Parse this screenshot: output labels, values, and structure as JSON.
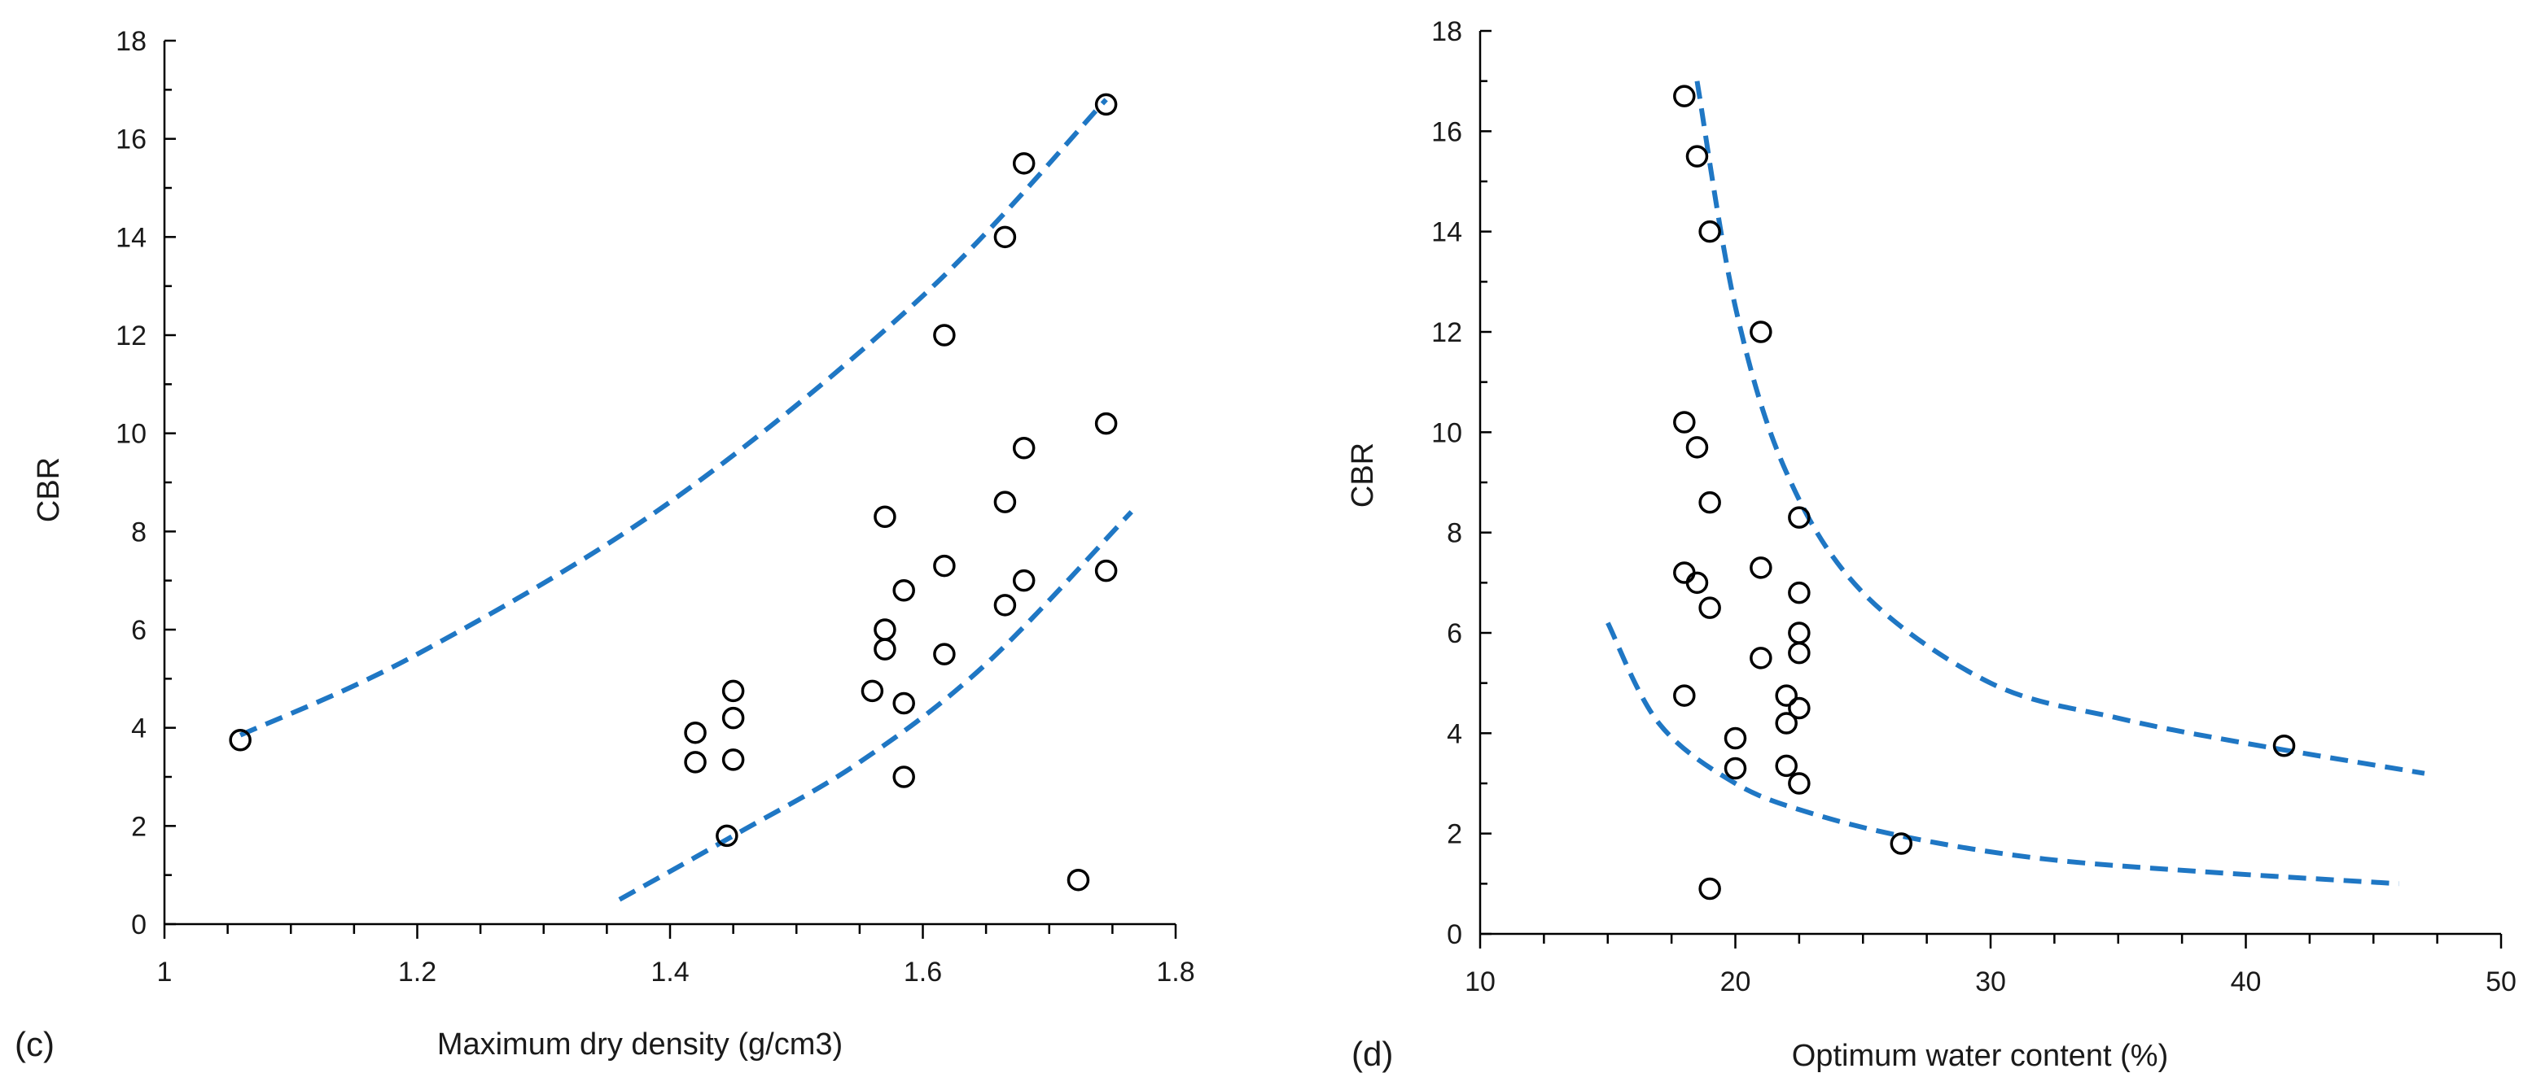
{
  "colors": {
    "trend": "#1f77c4",
    "marker": "#000000",
    "axis": "#000000"
  },
  "chart_data": [
    {
      "type": "scatter",
      "panel_label": "(c)",
      "title": "",
      "xlabel": "Maximum dry density (g/cm3)",
      "ylabel": "CBR",
      "xlim": [
        1,
        1.8
      ],
      "ylim": [
        0,
        18
      ],
      "xticks": [
        1,
        1.2,
        1.4,
        1.6,
        1.8
      ],
      "xtick_labels": [
        "1",
        "1.2",
        "1.4",
        "1.6",
        "1.8"
      ],
      "yticks": [
        0,
        2,
        4,
        6,
        8,
        10,
        12,
        14,
        16,
        18
      ],
      "ytick_labels": [
        "0",
        "2",
        "4",
        "6",
        "8",
        "10",
        "12",
        "14",
        "16",
        "18"
      ],
      "grid": false,
      "points": [
        [
          1.06,
          3.75
        ],
        [
          1.42,
          3.9
        ],
        [
          1.42,
          3.3
        ],
        [
          1.45,
          4.75
        ],
        [
          1.45,
          4.2
        ],
        [
          1.45,
          3.35
        ],
        [
          1.445,
          1.8
        ],
        [
          1.56,
          4.75
        ],
        [
          1.57,
          8.3
        ],
        [
          1.57,
          6.0
        ],
        [
          1.57,
          5.6
        ],
        [
          1.585,
          6.8
        ],
        [
          1.585,
          4.5
        ],
        [
          1.585,
          3.0
        ],
        [
          1.617,
          12.0
        ],
        [
          1.617,
          7.3
        ],
        [
          1.617,
          5.5
        ],
        [
          1.665,
          14.0
        ],
        [
          1.665,
          8.6
        ],
        [
          1.665,
          6.5
        ],
        [
          1.68,
          15.5
        ],
        [
          1.68,
          9.7
        ],
        [
          1.68,
          7.0
        ],
        [
          1.745,
          16.7
        ],
        [
          1.745,
          10.2
        ],
        [
          1.745,
          7.2
        ],
        [
          1.723,
          0.9
        ]
      ],
      "trend_lines": [
        {
          "name": "upper bound",
          "x": [
            1.06,
            1.2,
            1.4,
            1.6,
            1.745
          ],
          "y": [
            3.85,
            5.5,
            8.6,
            12.8,
            16.8
          ]
        },
        {
          "name": "lower bound",
          "x": [
            1.36,
            1.45,
            1.55,
            1.65,
            1.765
          ],
          "y": [
            0.5,
            1.8,
            3.3,
            5.3,
            8.4
          ]
        }
      ]
    },
    {
      "type": "scatter",
      "panel_label": "(d)",
      "title": "",
      "xlabel": "Optimum water content (%)",
      "ylabel": "CBR",
      "xlim": [
        10,
        50
      ],
      "ylim": [
        0,
        18
      ],
      "xticks": [
        10,
        20,
        30,
        40,
        50
      ],
      "xtick_labels": [
        "10",
        "20",
        "30",
        "40",
        "50"
      ],
      "yticks": [
        0,
        2,
        4,
        6,
        8,
        10,
        12,
        14,
        16,
        18
      ],
      "ytick_labels": [
        "0",
        "2",
        "4",
        "6",
        "8",
        "10",
        "12",
        "14",
        "16",
        "18"
      ],
      "grid": false,
      "points": [
        [
          18,
          16.7
        ],
        [
          18.5,
          15.5
        ],
        [
          19,
          14.0
        ],
        [
          21,
          12.0
        ],
        [
          18,
          10.2
        ],
        [
          18.5,
          9.7
        ],
        [
          19,
          8.6
        ],
        [
          22.5,
          8.3
        ],
        [
          21,
          7.3
        ],
        [
          18,
          7.2
        ],
        [
          18.5,
          7.0
        ],
        [
          22.5,
          6.8
        ],
        [
          19,
          6.5
        ],
        [
          22.5,
          6.0
        ],
        [
          22.5,
          5.6
        ],
        [
          21,
          5.5
        ],
        [
          18,
          4.75
        ],
        [
          22,
          4.75
        ],
        [
          22.5,
          4.5
        ],
        [
          22,
          4.2
        ],
        [
          20,
          3.9
        ],
        [
          22,
          3.35
        ],
        [
          20,
          3.3
        ],
        [
          22.5,
          3.0
        ],
        [
          26.5,
          1.8
        ],
        [
          19,
          0.9
        ],
        [
          41.5,
          3.75
        ]
      ],
      "trend_lines": [
        {
          "name": "upper bound",
          "x": [
            18.5,
            20,
            22,
            25,
            30,
            35,
            40,
            47
          ],
          "y": [
            17,
            12.5,
            9.2,
            6.8,
            5.0,
            4.3,
            3.8,
            3.2
          ]
        },
        {
          "name": "lower bound",
          "x": [
            15,
            17,
            20,
            23,
            27,
            32,
            38,
            46
          ],
          "y": [
            6.2,
            4.2,
            3.0,
            2.4,
            1.9,
            1.5,
            1.25,
            1.0
          ]
        }
      ]
    }
  ]
}
